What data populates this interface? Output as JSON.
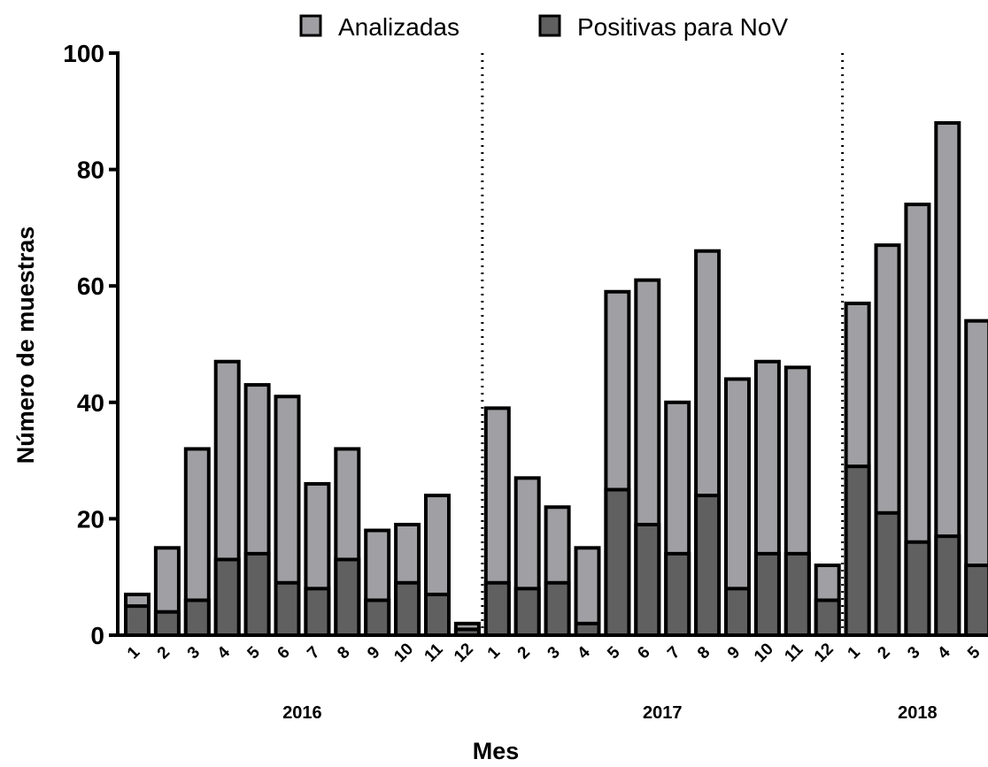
{
  "chart_data": {
    "type": "bar",
    "x_label": "Mes",
    "y_label": "Número de muestras",
    "category_groups": [
      {
        "label": "2016",
        "categories": [
          "1",
          "2",
          "3",
          "4",
          "5",
          "6",
          "7",
          "8",
          "9",
          "10",
          "11",
          "12"
        ]
      },
      {
        "label": "2017",
        "categories": [
          "1",
          "2",
          "3",
          "4",
          "5",
          "6",
          "7",
          "8",
          "9",
          "10",
          "11",
          "12"
        ]
      },
      {
        "label": "2018",
        "categories": [
          "1",
          "2",
          "3",
          "4",
          "5"
        ]
      }
    ],
    "series": [
      {
        "name": "Analizadas",
        "color": "#a0a0a4",
        "values": [
          7,
          15,
          32,
          47,
          43,
          41,
          26,
          32,
          18,
          19,
          24,
          2,
          39,
          27,
          22,
          15,
          59,
          61,
          40,
          66,
          44,
          47,
          46,
          12,
          57,
          67,
          74,
          88,
          54
        ]
      },
      {
        "name": "Positivas para NoV",
        "color": "#606060",
        "values": [
          5,
          4,
          6,
          13,
          14,
          9,
          8,
          13,
          6,
          9,
          7,
          1,
          9,
          8,
          9,
          2,
          25,
          19,
          14,
          24,
          8,
          14,
          14,
          6,
          29,
          21,
          16,
          17,
          12
        ]
      }
    ],
    "ylim": [
      0,
      100
    ],
    "yticks": [
      0,
      20,
      40,
      60,
      80,
      100
    ]
  }
}
